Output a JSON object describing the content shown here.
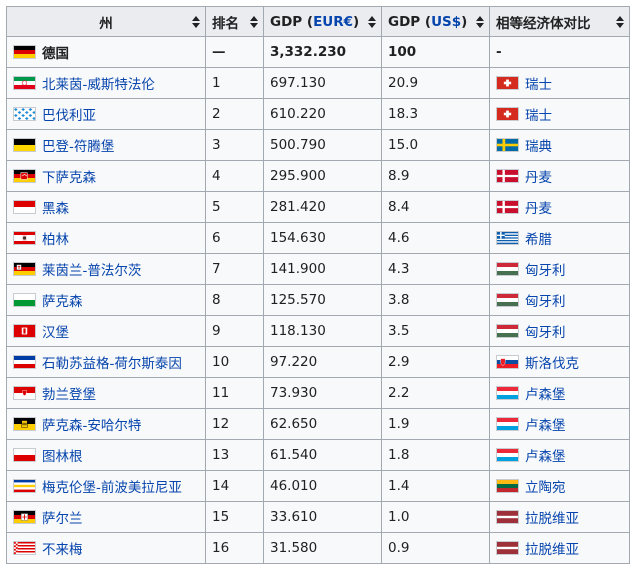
{
  "header": {
    "state": "州",
    "rank": "排名",
    "gdp_eur_prefix": "GDP (",
    "gdp_eur_link": "EUR€",
    "gdp_eur_suffix": ")",
    "gdp_usd_prefix": "GDP (",
    "gdp_usd_link": "US$",
    "gdp_usd_suffix": ")",
    "comparable": "相等经济体对比"
  },
  "rows": [
    {
      "state": "德国",
      "rank": "—",
      "eur": "3,332.230",
      "usd": "100",
      "compare": "-",
      "flag": "germany",
      "compare_flag": "",
      "bold": true
    },
    {
      "state": "北莱茵-威斯特法伦",
      "rank": "1",
      "eur": "697.130",
      "usd": "20.9",
      "compare": "瑞士",
      "flag": "nrw",
      "compare_flag": "switzerland"
    },
    {
      "state": "巴伐利亚",
      "rank": "2",
      "eur": "610.220",
      "usd": "18.3",
      "compare": "瑞士",
      "flag": "bavaria",
      "compare_flag": "switzerland"
    },
    {
      "state": "巴登-符腾堡",
      "rank": "3",
      "eur": "500.790",
      "usd": "15.0",
      "compare": "瑞典",
      "flag": "bw",
      "compare_flag": "sweden"
    },
    {
      "state": "下萨克森",
      "rank": "4",
      "eur": "295.900",
      "usd": "8.9",
      "compare": "丹麦",
      "flag": "lowersaxony",
      "compare_flag": "denmark"
    },
    {
      "state": "黑森",
      "rank": "5",
      "eur": "281.420",
      "usd": "8.4",
      "compare": "丹麦",
      "flag": "hesse",
      "compare_flag": "denmark"
    },
    {
      "state": "柏林",
      "rank": "6",
      "eur": "154.630",
      "usd": "4.6",
      "compare": "希腊",
      "flag": "berlin",
      "compare_flag": "greece"
    },
    {
      "state": "莱茵兰-普法尔茨",
      "rank": "7",
      "eur": "141.900",
      "usd": "4.3",
      "compare": "匈牙利",
      "flag": "rp",
      "compare_flag": "hungary"
    },
    {
      "state": "萨克森",
      "rank": "8",
      "eur": "125.570",
      "usd": "3.8",
      "compare": "匈牙利",
      "flag": "saxony",
      "compare_flag": "hungary"
    },
    {
      "state": "汉堡",
      "rank": "9",
      "eur": "118.130",
      "usd": "3.5",
      "compare": "匈牙利",
      "flag": "hamburg",
      "compare_flag": "hungary"
    },
    {
      "state": "石勒苏益格-荷尔斯泰因",
      "rank": "10",
      "eur": "97.220",
      "usd": "2.9",
      "compare": "斯洛伐克",
      "flag": "sh",
      "compare_flag": "slovakia"
    },
    {
      "state": "勃兰登堡",
      "rank": "11",
      "eur": "73.930",
      "usd": "2.2",
      "compare": "卢森堡",
      "flag": "brandenburg",
      "compare_flag": "luxembourg"
    },
    {
      "state": "萨克森-安哈尔特",
      "rank": "12",
      "eur": "62.650",
      "usd": "1.9",
      "compare": "卢森堡",
      "flag": "sa",
      "compare_flag": "luxembourg"
    },
    {
      "state": "图林根",
      "rank": "13",
      "eur": "61.540",
      "usd": "1.8",
      "compare": "卢森堡",
      "flag": "thuringia",
      "compare_flag": "luxembourg"
    },
    {
      "state": "梅克伦堡-前波美拉尼亚",
      "rank": "14",
      "eur": "46.010",
      "usd": "1.4",
      "compare": "立陶宛",
      "flag": "mv",
      "compare_flag": "lithuania"
    },
    {
      "state": "萨尔兰",
      "rank": "15",
      "eur": "33.610",
      "usd": "1.0",
      "compare": "拉脱维亚",
      "flag": "saarland",
      "compare_flag": "latvia"
    },
    {
      "state": "不来梅",
      "rank": "16",
      "eur": "31.580",
      "usd": "0.9",
      "compare": "拉脱维亚",
      "flag": "bremen",
      "compare_flag": "latvia"
    }
  ],
  "colors": {
    "header_bg": "#eaecf0",
    "cell_bg": "#f8f9fa",
    "border": "#a2a9b1",
    "link": "#0645ad",
    "text": "#202122"
  }
}
